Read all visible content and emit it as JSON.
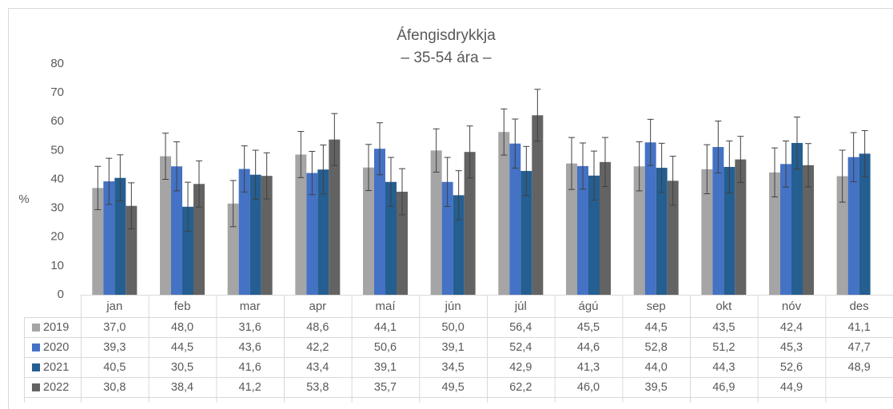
{
  "chart_data": {
    "type": "bar",
    "title": "Áfengisdrykkja",
    "subtitle": "– 35-54 ára –",
    "y_label": "%",
    "categories": [
      "jan",
      "feb",
      "mar",
      "apr",
      "maí",
      "jún",
      "júl",
      "ágú",
      "sep",
      "okt",
      "nóv",
      "des"
    ],
    "ylim": [
      0,
      80
    ],
    "yticks": [
      0,
      10,
      20,
      30,
      40,
      50,
      60,
      70,
      80
    ],
    "grid": false,
    "legend": "table",
    "series": [
      {
        "name": "2019",
        "color": "#a5a5a5",
        "values": [
          37.0,
          48.0,
          31.6,
          48.6,
          44.1,
          50.0,
          56.4,
          45.5,
          44.5,
          43.5,
          42.4,
          41.1
        ],
        "value_labels": [
          "37,0",
          "48,0",
          "31,6",
          "48,6",
          "44,1",
          "50,0",
          "56,4",
          "45,5",
          "44,5",
          "43,5",
          "42,4",
          "41,1"
        ],
        "errors": [
          7.5,
          8,
          8,
          8,
          8,
          7.5,
          8,
          9,
          8.5,
          8.5,
          8.5,
          9
        ]
      },
      {
        "name": "2020",
        "color": "#4472c4",
        "values": [
          39.3,
          44.5,
          43.6,
          42.2,
          50.6,
          39.1,
          52.4,
          44.6,
          52.8,
          51.2,
          45.3,
          47.7
        ],
        "value_labels": [
          "39,3",
          "44,5",
          "43,6",
          "42,2",
          "50,6",
          "39,1",
          "52,4",
          "44,6",
          "52,8",
          "51,2",
          "45,3",
          "47,7"
        ],
        "errors": [
          8,
          8.5,
          8,
          7.5,
          9,
          8.5,
          8.5,
          8,
          8,
          9,
          8,
          8.5
        ]
      },
      {
        "name": "2021",
        "color": "#255e91",
        "values": [
          40.5,
          30.5,
          41.6,
          43.4,
          39.1,
          34.5,
          42.9,
          41.3,
          44.0,
          44.3,
          52.6,
          48.9
        ],
        "value_labels": [
          "40,5",
          "30,5",
          "41,6",
          "43,4",
          "39,1",
          "34,5",
          "42,9",
          "41,3",
          "44,0",
          "44,3",
          "52,6",
          "48,9"
        ],
        "errors": [
          8,
          8.5,
          8.5,
          8.5,
          8.5,
          8.5,
          8.5,
          8.5,
          8.5,
          9,
          9,
          8
        ]
      },
      {
        "name": "2022",
        "color": "#636363",
        "values": [
          30.8,
          38.4,
          41.2,
          53.8,
          35.7,
          49.5,
          62.2,
          46.0,
          39.5,
          46.9,
          44.9,
          null
        ],
        "value_labels": [
          "30,8",
          "38,4",
          "41,2",
          "53,8",
          "35,7",
          "49,5",
          "62,2",
          "46,0",
          "39,5",
          "46,9",
          "44,9",
          null
        ],
        "errors": [
          8,
          8,
          8,
          9,
          8,
          9,
          9,
          8.5,
          8.5,
          8,
          7.5,
          null
        ]
      }
    ]
  }
}
